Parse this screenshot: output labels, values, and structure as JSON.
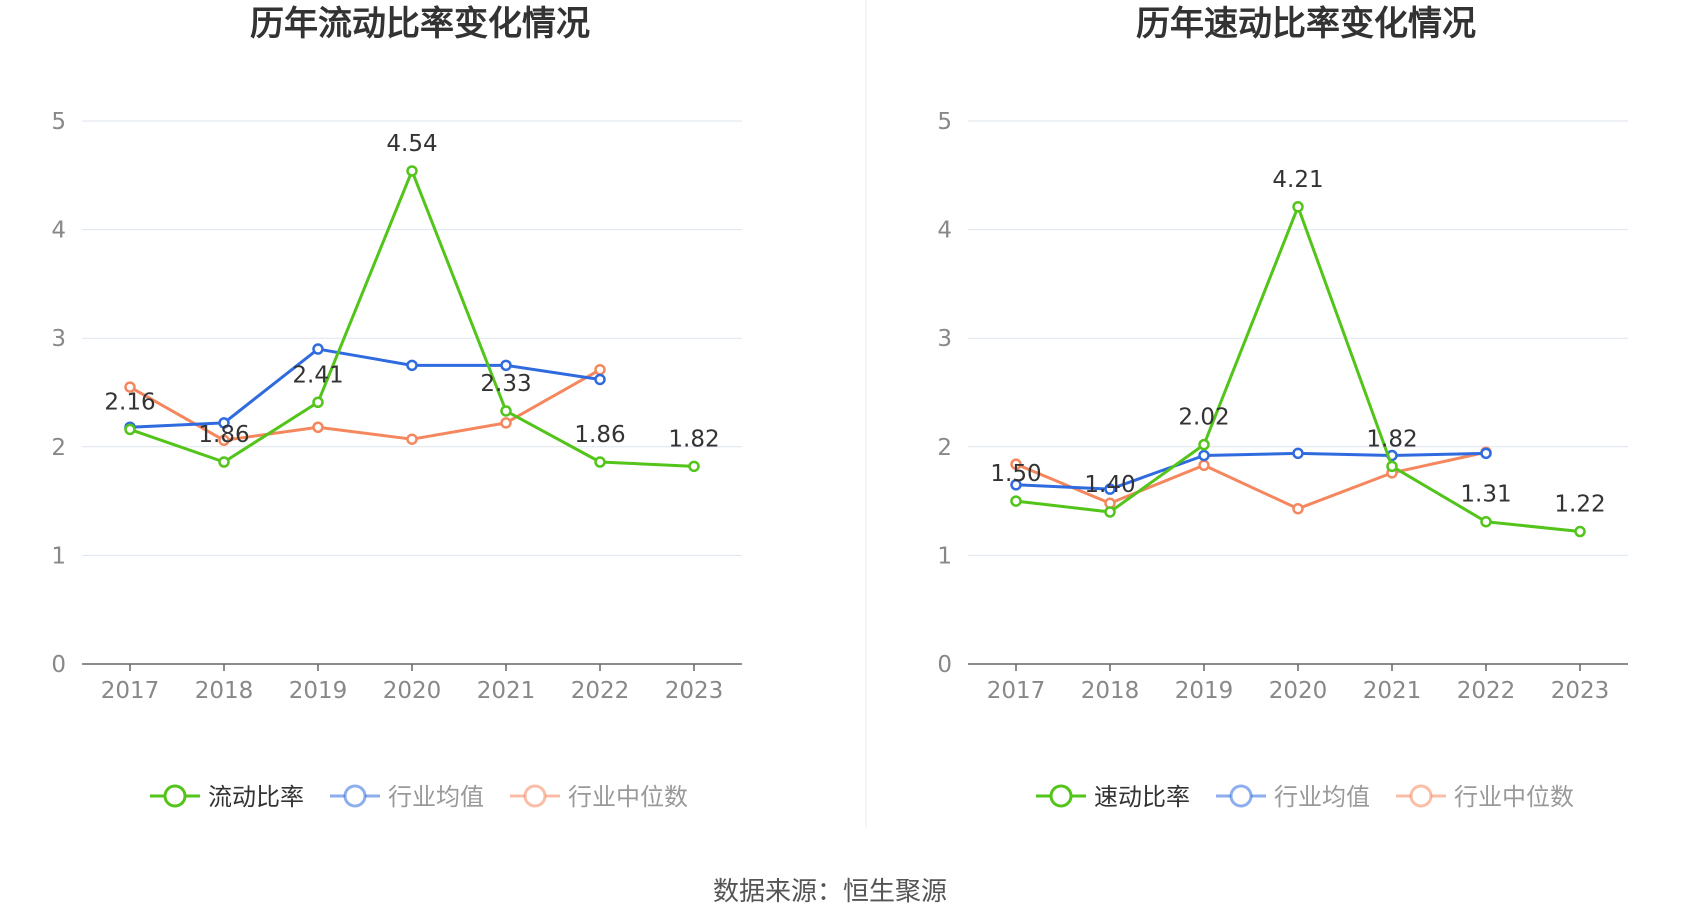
{
  "source_text": "数据来源：恒生聚源",
  "colors": {
    "main": "#52c41a",
    "avg": "#2f6bde",
    "median": "#f5875f",
    "grid": "#dde4ee",
    "axis": "#666666",
    "legend_active_text": "#333333",
    "legend_inactive_text": "#999999"
  },
  "chart_data": [
    {
      "type": "line",
      "title": "历年流动比率变化情况",
      "categories": [
        "2017",
        "2018",
        "2019",
        "2020",
        "2021",
        "2022",
        "2023"
      ],
      "ylim": [
        0,
        5
      ],
      "yticks": [
        0,
        1,
        2,
        3,
        4,
        5
      ],
      "series": [
        {
          "name": "流动比率",
          "key": "main",
          "values": [
            2.16,
            1.86,
            2.41,
            4.54,
            2.33,
            1.86,
            1.82
          ],
          "labels": [
            "2.16",
            "1.86",
            "2.41",
            "4.54",
            "2.33",
            "1.86",
            "1.82"
          ]
        },
        {
          "name": "行业均值",
          "key": "avg",
          "values": [
            2.18,
            2.22,
            2.9,
            2.75,
            2.75,
            2.62,
            null
          ]
        },
        {
          "name": "行业中位数",
          "key": "median",
          "values": [
            2.55,
            2.06,
            2.18,
            2.07,
            2.22,
            2.71,
            null
          ]
        }
      ]
    },
    {
      "type": "line",
      "title": "历年速动比率变化情况",
      "categories": [
        "2017",
        "2018",
        "2019",
        "2020",
        "2021",
        "2022",
        "2023"
      ],
      "ylim": [
        0,
        5
      ],
      "yticks": [
        0,
        1,
        2,
        3,
        4,
        5
      ],
      "series": [
        {
          "name": "速动比率",
          "key": "main",
          "values": [
            1.5,
            1.4,
            2.02,
            4.21,
            1.82,
            1.31,
            1.22
          ],
          "labels": [
            "1.50",
            "1.40",
            "2.02",
            "4.21",
            "1.82",
            "1.31",
            "1.22"
          ]
        },
        {
          "name": "行业均值",
          "key": "avg",
          "values": [
            1.65,
            1.61,
            1.92,
            1.94,
            1.92,
            1.94,
            null
          ]
        },
        {
          "name": "行业中位数",
          "key": "median",
          "values": [
            1.84,
            1.48,
            1.83,
            1.43,
            1.76,
            1.95,
            null
          ]
        }
      ]
    }
  ]
}
